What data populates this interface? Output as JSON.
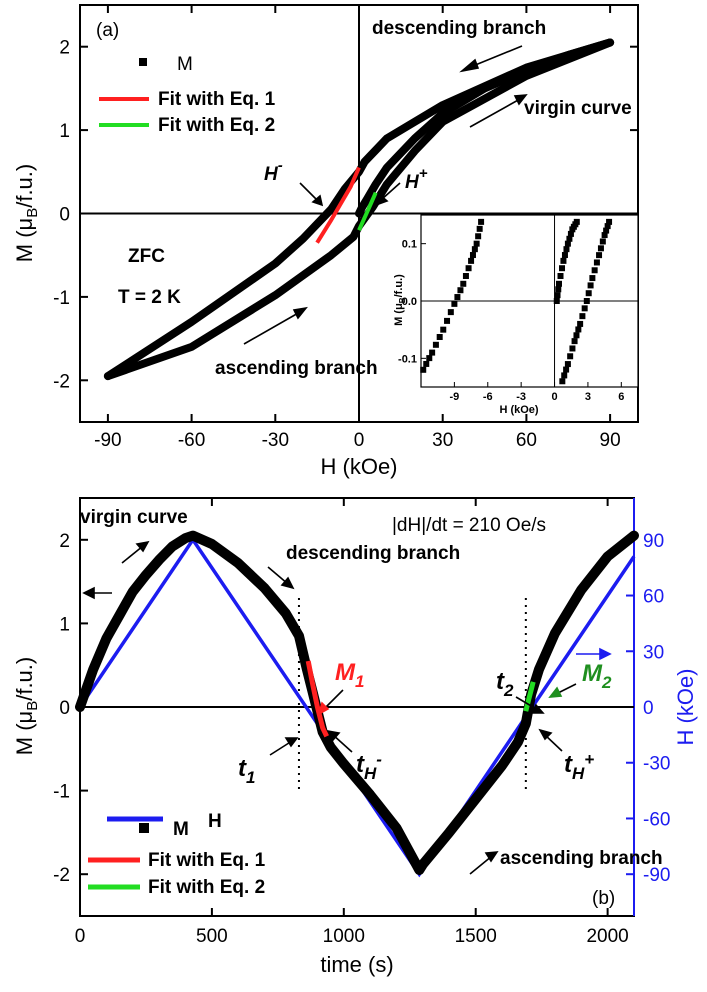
{
  "chart_data": [
    {
      "panel": "(a)",
      "type": "line",
      "xlabel": "H (kOe)",
      "ylabel": "M (μB/f.u.)",
      "xlim": [
        -100,
        100
      ],
      "ylim": [
        -2.5,
        2.5
      ],
      "xticks": [
        -90,
        -60,
        -30,
        0,
        30,
        60,
        90
      ],
      "yticks": [
        -2,
        -1,
        0,
        1,
        2
      ],
      "legend": [
        "M",
        "Fit with Eq. 1",
        "Fit with Eq. 2"
      ],
      "legend_position": "top-left",
      "colors": {
        "M": "#000000",
        "fit1": "#ff2020",
        "fit2": "#22dd22"
      },
      "annotations": {
        "descending": "descending branch",
        "virgin": "virgin curve",
        "ascending": "ascending branch",
        "zfc": "ZFC",
        "temperature": "T = 2 K",
        "hminus": "H",
        "hminus_sup": "-",
        "hplus": "H",
        "hplus_sup": "+"
      },
      "series": [
        {
          "name": "M",
          "descending": {
            "x": [
              90,
              60,
              30,
              10,
              2,
              0,
              -5,
              -10,
              -20,
              -30,
              -60,
              -90
            ],
            "y": [
              2.05,
              1.75,
              1.3,
              0.9,
              0.62,
              0.5,
              0.3,
              0.05,
              -0.3,
              -0.6,
              -1.3,
              -1.95
            ]
          },
          "ascending": {
            "x": [
              -90,
              -60,
              -30,
              -10,
              -2,
              0,
              5,
              10,
              20,
              30,
              60,
              90
            ],
            "y": [
              -1.95,
              -1.6,
              -0.98,
              -0.5,
              -0.28,
              -0.15,
              0.08,
              0.35,
              0.75,
              1.1,
              1.65,
              2.05
            ]
          },
          "virgin": {
            "x": [
              0,
              1,
              3,
              6,
              10,
              20,
              30,
              45,
              60,
              75,
              90
            ],
            "y": [
              0,
              0.07,
              0.18,
              0.35,
              0.55,
              0.9,
              1.2,
              1.5,
              1.72,
              1.9,
              2.05
            ]
          }
        },
        {
          "name": "Fit with Eq. 1",
          "x": [
            -15,
            -10,
            -6,
            -3,
            0
          ],
          "y": [
            -0.35,
            -0.08,
            0.15,
            0.32,
            0.55
          ]
        },
        {
          "name": "Fit with Eq. 2",
          "x": [
            0,
            2,
            4,
            6
          ],
          "y": [
            -0.2,
            -0.05,
            0.1,
            0.25
          ]
        }
      ],
      "inset": {
        "xlabel": "H (kOe)",
        "ylabel": "M (μB/f.u.)",
        "xlim": [
          -12,
          7.5
        ],
        "ylim": [
          -0.15,
          0.15
        ],
        "xticks": [
          -9,
          -6,
          -3,
          0,
          3,
          6
        ],
        "yticks": [
          -0.1,
          0.0,
          0.1
        ],
        "ytick_labels": [
          "-0.1",
          "0.0",
          "0.1"
        ],
        "series": [
          {
            "x": [
              -11.8,
              -11.0,
              -10.0,
              -9.0,
              -8.2,
              -7.5,
              -7.0,
              -6.6
            ],
            "y": [
              -0.12,
              -0.09,
              -0.05,
              -0.005,
              0.03,
              0.07,
              0.1,
              0.138
            ]
          },
          {
            "x": [
              0.2,
              0.4,
              0.8,
              1.2,
              1.6,
              2.0
            ],
            "y": [
              0.0,
              0.03,
              0.07,
              0.1,
              0.125,
              0.138
            ]
          },
          {
            "x": [
              0.7,
              1.2,
              1.8,
              2.3,
              2.9,
              3.4,
              4.0,
              4.5,
              4.9
            ],
            "y": [
              -0.14,
              -0.11,
              -0.07,
              -0.04,
              0.0,
              0.04,
              0.08,
              0.115,
              0.138
            ]
          }
        ]
      }
    },
    {
      "panel": "(b)",
      "type": "line",
      "xlabel": "time (s)",
      "ylabel": "M (μB/f.u.)",
      "y2label": "H (kOe)",
      "xlim": [
        0,
        2100
      ],
      "ylim": [
        -2.5,
        2.5
      ],
      "y2lim": [
        -112.5,
        112.5
      ],
      "xticks": [
        0,
        500,
        1000,
        1500,
        2000
      ],
      "yticks": [
        -2,
        -1,
        0,
        1,
        2
      ],
      "y2ticks": [
        -90,
        -60,
        -30,
        0,
        30,
        60,
        90
      ],
      "legend": [
        "H",
        "M",
        "Fit with Eq. 1",
        "Fit with Eq. 2"
      ],
      "legend_position": "bottom-left",
      "colors": {
        "M": "#000000",
        "H": "#1c1cf0",
        "fit1": "#ff2020",
        "fit2": "#22dd22"
      },
      "annotations": {
        "rate": "|dH|/dt = 210 Oe/s",
        "virgin": "virgin curve",
        "descending": "descending branch",
        "ascending": "ascending branch",
        "m1": "M",
        "m1_sub": "1",
        "m2": "M",
        "m2_sub": "2",
        "t1": "t",
        "t1_sub": "1",
        "t2": "t",
        "t2_sub": "2",
        "thm": "t",
        "thm_sub": "H",
        "thm_sup": "-",
        "thp": "t",
        "thp_sub": "H",
        "thp_sup": "+",
        "vline_times": [
          830,
          1690
        ]
      },
      "series": [
        {
          "name": "H",
          "x": [
            0,
            428,
            1286,
            2100
          ],
          "y": [
            0,
            90,
            -90,
            81
          ]
        },
        {
          "name": "M",
          "x": [
            0,
            50,
            100,
            150,
            200,
            250,
            300,
            350,
            400,
            428,
            500,
            600,
            700,
            780,
            830,
            860,
            880,
            920,
            950,
            1000,
            1100,
            1200,
            1286,
            1300,
            1400,
            1500,
            1600,
            1660,
            1690,
            1710,
            1740,
            1800,
            1900,
            2000,
            2100
          ],
          "y": [
            0,
            0.45,
            0.82,
            1.1,
            1.38,
            1.58,
            1.76,
            1.92,
            2.02,
            2.05,
            1.95,
            1.72,
            1.42,
            1.12,
            0.85,
            0.45,
            0.2,
            -0.3,
            -0.48,
            -0.68,
            -1.05,
            -1.45,
            -1.95,
            -1.88,
            -1.5,
            -1.1,
            -0.7,
            -0.42,
            -0.2,
            0.15,
            0.45,
            0.88,
            1.4,
            1.8,
            2.05
          ]
        },
        {
          "name": "Fit with Eq. 1",
          "x": [
            865,
            880,
            900,
            920,
            935
          ],
          "y": [
            0.55,
            0.3,
            0.0,
            -0.25,
            -0.35
          ]
        },
        {
          "name": "Fit with Eq. 2",
          "x": [
            1690,
            1700,
            1710,
            1718
          ],
          "y": [
            -0.05,
            0.08,
            0.2,
            0.3
          ]
        }
      ],
      "panel_label": "(b)"
    }
  ]
}
